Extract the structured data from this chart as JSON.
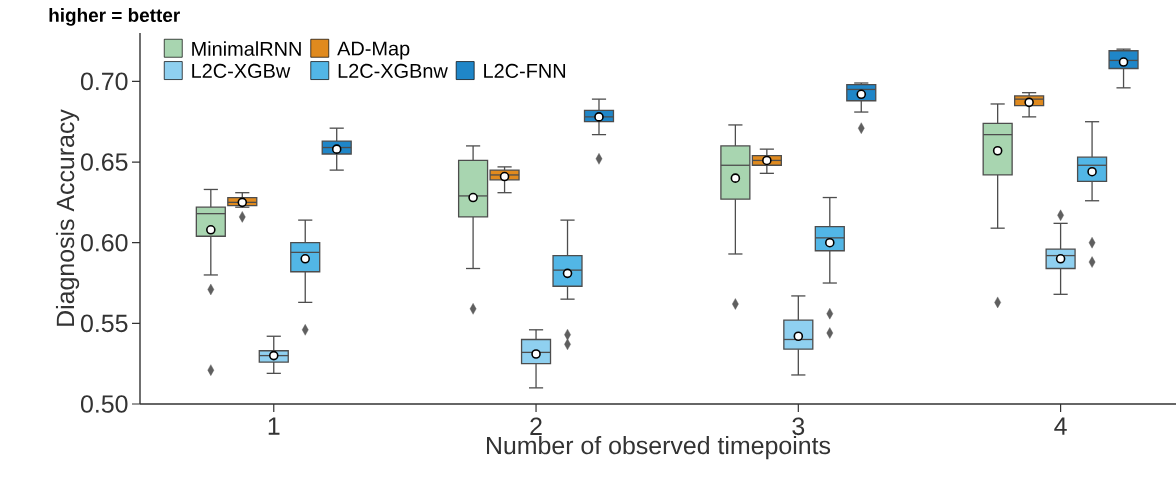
{
  "chart_data": {
    "type": "box",
    "title": "higher = better",
    "xlabel": "Number of observed timepoints",
    "ylabel": "Diagnosis Accuracy",
    "categories": [
      "1",
      "2",
      "3",
      "4"
    ],
    "ylim": [
      0.5,
      0.73
    ],
    "yticks": [
      {
        "value": 0.5,
        "label": "0.50"
      },
      0.55,
      {
        "value": 0.6,
        "label": "0.60"
      },
      0.65,
      {
        "value": 0.7,
        "label": "0.70"
      }
    ],
    "grid": false,
    "legend": "top left",
    "series": [
      {
        "name": "MinimalRNN",
        "color": "#a8d5b0",
        "boxes": [
          {
            "low": 0.58,
            "q1": 0.604,
            "median": 0.618,
            "q3": 0.622,
            "high": 0.633,
            "mean": 0.608,
            "outliers": [
              0.571,
              0.521
            ]
          },
          {
            "low": 0.584,
            "q1": 0.616,
            "median": 0.629,
            "q3": 0.651,
            "high": 0.66,
            "mean": 0.628,
            "outliers": [
              0.559
            ]
          },
          {
            "low": 0.593,
            "q1": 0.627,
            "median": 0.648,
            "q3": 0.66,
            "high": 0.673,
            "mean": 0.64,
            "outliers": [
              0.562
            ]
          },
          {
            "low": 0.609,
            "q1": 0.642,
            "median": 0.667,
            "q3": 0.674,
            "high": 0.686,
            "mean": 0.657,
            "outliers": [
              0.563
            ]
          }
        ]
      },
      {
        "name": "AD-Map",
        "color": "#e08a1e",
        "boxes": [
          {
            "low": 0.622,
            "q1": 0.623,
            "median": 0.625,
            "q3": 0.628,
            "high": 0.631,
            "mean": 0.625,
            "outliers": [
              0.616
            ]
          },
          {
            "low": 0.631,
            "q1": 0.639,
            "median": 0.642,
            "q3": 0.645,
            "high": 0.647,
            "mean": 0.641
          },
          {
            "low": 0.643,
            "q1": 0.648,
            "median": 0.651,
            "q3": 0.654,
            "high": 0.658,
            "mean": 0.651
          },
          {
            "low": 0.678,
            "q1": 0.685,
            "median": 0.689,
            "q3": 0.691,
            "high": 0.693,
            "mean": 0.687
          }
        ]
      },
      {
        "name": "L2C-XGBw",
        "color": "#8fd0f0",
        "boxes": [
          {
            "low": 0.519,
            "q1": 0.526,
            "median": 0.53,
            "q3": 0.533,
            "high": 0.542,
            "mean": 0.53
          },
          {
            "low": 0.51,
            "q1": 0.525,
            "median": 0.532,
            "q3": 0.54,
            "high": 0.546,
            "mean": 0.531
          },
          {
            "low": 0.518,
            "q1": 0.534,
            "median": 0.54,
            "q3": 0.552,
            "high": 0.567,
            "mean": 0.542
          },
          {
            "low": 0.568,
            "q1": 0.584,
            "median": 0.592,
            "q3": 0.596,
            "high": 0.612,
            "mean": 0.59,
            "outliers": [
              0.617
            ]
          }
        ]
      },
      {
        "name": "L2C-XGBnw",
        "color": "#52b6e6",
        "boxes": [
          {
            "low": 0.563,
            "q1": 0.582,
            "median": 0.594,
            "q3": 0.6,
            "high": 0.614,
            "mean": 0.59,
            "outliers": [
              0.546
            ]
          },
          {
            "low": 0.565,
            "q1": 0.573,
            "median": 0.583,
            "q3": 0.592,
            "high": 0.614,
            "mean": 0.581,
            "outliers": [
              0.543,
              0.537
            ]
          },
          {
            "low": 0.575,
            "q1": 0.595,
            "median": 0.603,
            "q3": 0.61,
            "high": 0.628,
            "mean": 0.6,
            "outliers": [
              0.556,
              0.544
            ]
          },
          {
            "low": 0.626,
            "q1": 0.638,
            "median": 0.648,
            "q3": 0.653,
            "high": 0.675,
            "mean": 0.644,
            "outliers": [
              0.6,
              0.588
            ]
          }
        ]
      },
      {
        "name": "L2C-FNN",
        "color": "#1f86c8",
        "boxes": [
          {
            "low": 0.645,
            "q1": 0.655,
            "median": 0.659,
            "q3": 0.663,
            "high": 0.671,
            "mean": 0.658
          },
          {
            "low": 0.667,
            "q1": 0.675,
            "median": 0.678,
            "q3": 0.682,
            "high": 0.689,
            "mean": 0.678,
            "outliers": [
              0.652
            ]
          },
          {
            "low": 0.681,
            "q1": 0.688,
            "median": 0.695,
            "q3": 0.698,
            "high": 0.699,
            "mean": 0.692,
            "outliers": [
              0.671
            ]
          },
          {
            "low": 0.696,
            "q1": 0.708,
            "median": 0.713,
            "q3": 0.719,
            "high": 0.72,
            "mean": 0.712
          }
        ]
      }
    ]
  }
}
